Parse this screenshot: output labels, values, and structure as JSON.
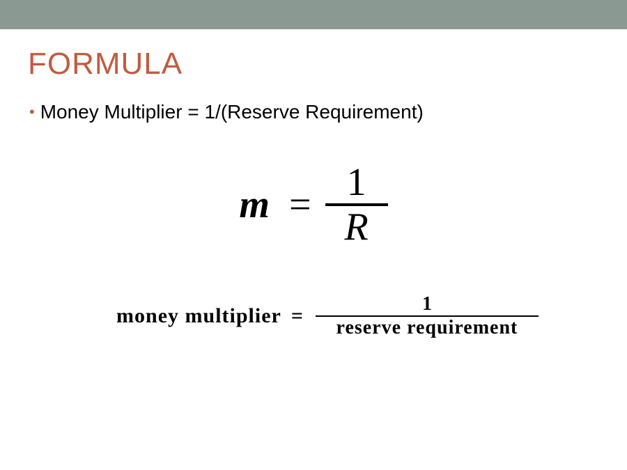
{
  "colors": {
    "top_bar": "#8a9a92",
    "title": "#c25b3f",
    "bullet": "#c25b3f",
    "text": "#000000",
    "background": "#ffffff"
  },
  "title": "FORMULA",
  "bullet_text": "Money Multiplier = 1/(Reserve Requirement)",
  "equation1": {
    "lhs": "m",
    "equals": "=",
    "numerator": "1",
    "denominator": "R"
  },
  "equation2": {
    "lhs": "money  multiplier",
    "equals": "=",
    "numerator": "1",
    "denominator": "reserve  requirement"
  }
}
